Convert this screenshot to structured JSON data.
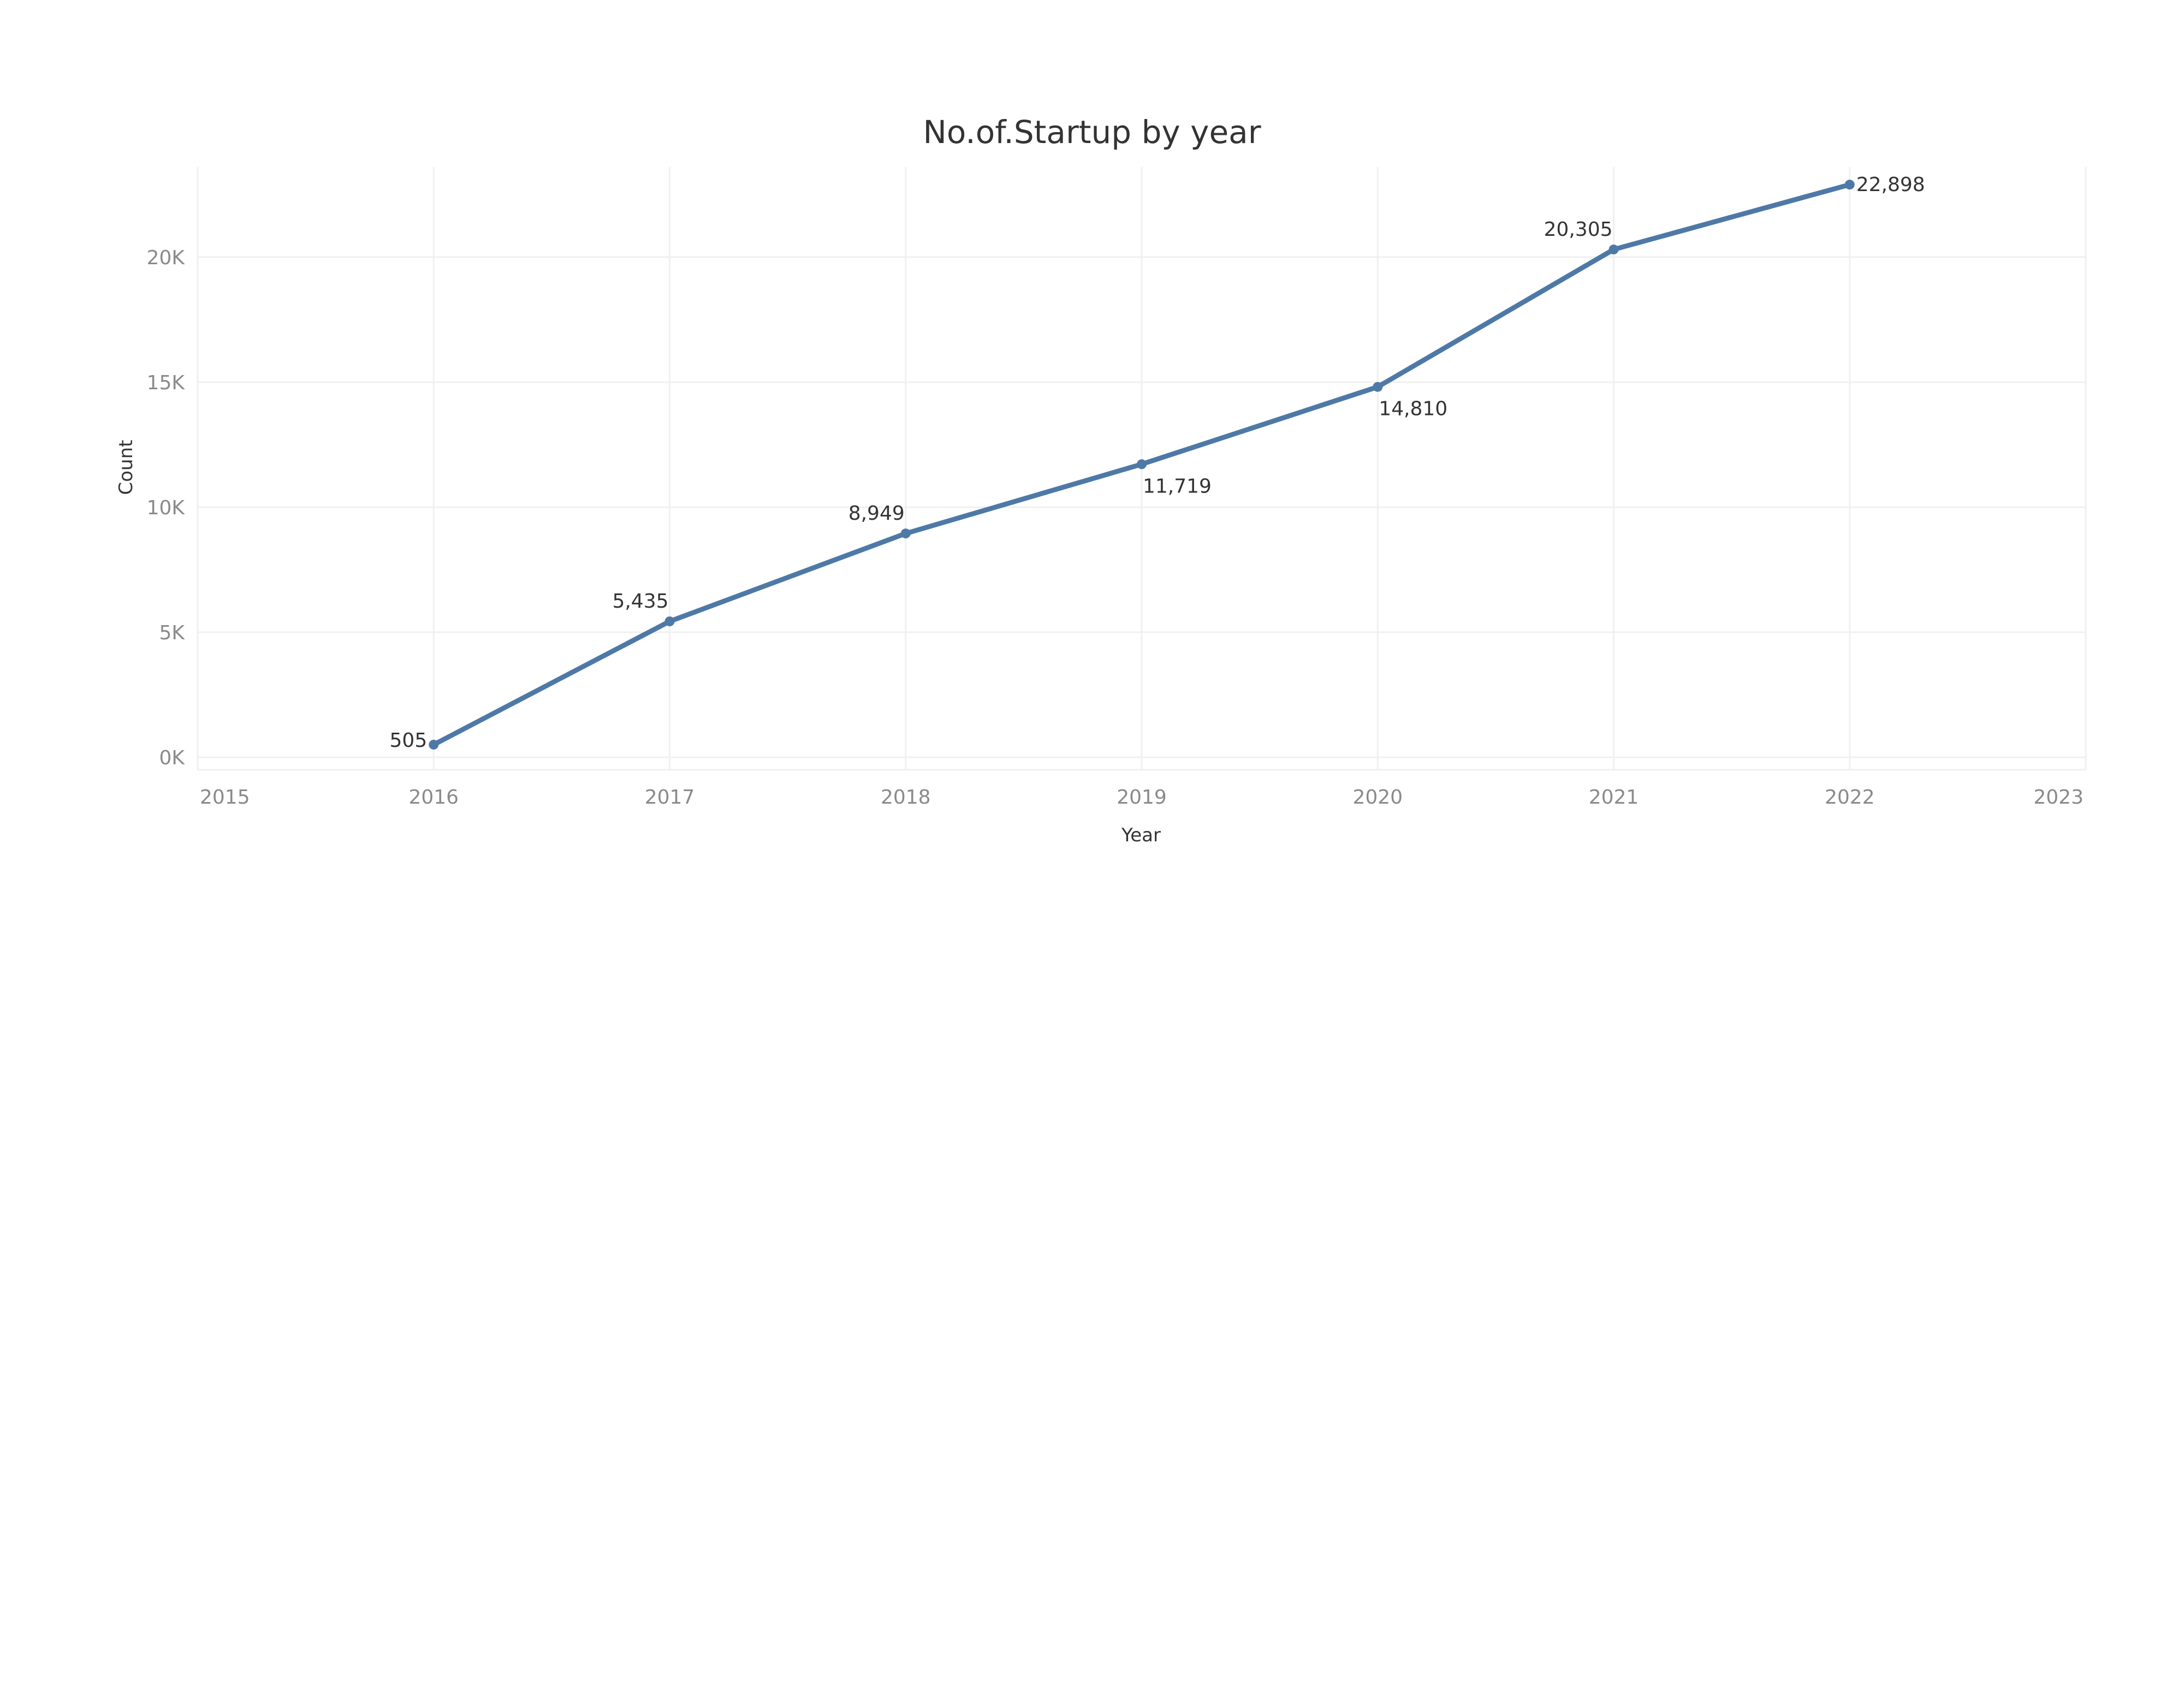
{
  "chart_data": {
    "type": "line",
    "title": "No.of.Startup by year",
    "xlabel": "Year",
    "ylabel": "Count",
    "x": [
      2016,
      2017,
      2018,
      2019,
      2020,
      2021,
      2022
    ],
    "series": [
      {
        "values": [
          505,
          5435,
          8949,
          11719,
          14810,
          20305,
          22898
        ],
        "labels": [
          "505",
          "5,435",
          "8,949",
          "11,719",
          "14,810",
          "20,305",
          "22,898"
        ]
      }
    ],
    "xlim": [
      2015,
      2023
    ],
    "ylim": [
      -500,
      23600
    ],
    "x_ticks": [
      2015,
      2016,
      2017,
      2018,
      2019,
      2020,
      2021,
      2022,
      2023
    ],
    "x_tick_labels": [
      "2015",
      "2016",
      "2017",
      "2018",
      "2019",
      "2020",
      "2021",
      "2022",
      "2023"
    ],
    "y_ticks": [
      0,
      5000,
      10000,
      15000,
      20000
    ],
    "y_tick_labels": [
      "0K",
      "5K",
      "10K",
      "15K",
      "20K"
    ],
    "grid": true,
    "legend": false,
    "colors": {
      "line": "#4e79a7",
      "grid": "#f0f0f0"
    }
  }
}
